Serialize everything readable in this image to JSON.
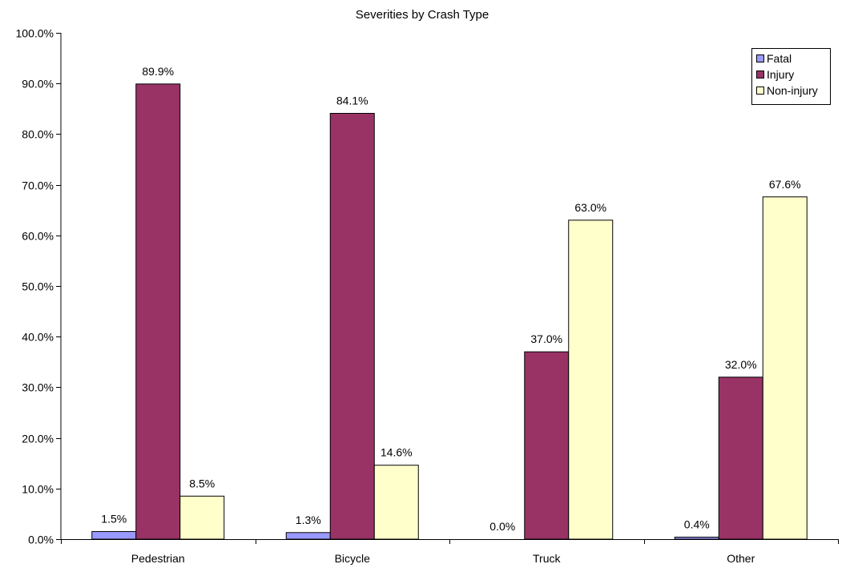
{
  "chart_data": {
    "type": "bar",
    "title": "Severities by Crash Type",
    "xlabel": "",
    "ylabel": "",
    "categories": [
      "Pedestrian",
      "Bicycle",
      "Truck",
      "Other"
    ],
    "series": [
      {
        "name": "Fatal",
        "color": "#9999ff",
        "values": [
          1.5,
          1.3,
          0.0,
          0.4
        ],
        "labels": [
          "1.5%",
          "1.3%",
          "0.0%",
          "0.4%"
        ]
      },
      {
        "name": "Injury",
        "color": "#993366",
        "values": [
          89.9,
          84.1,
          37.0,
          32.0
        ],
        "labels": [
          "89.9%",
          "84.1%",
          "37.0%",
          "32.0%"
        ]
      },
      {
        "name": "Non-injury",
        "color": "#ffffcc",
        "values": [
          8.5,
          14.6,
          63.0,
          67.6
        ],
        "labels": [
          "8.5%",
          "14.6%",
          "63.0%",
          "67.6%"
        ]
      }
    ],
    "ylim": [
      0,
      100
    ],
    "yticks": [
      0,
      10,
      20,
      30,
      40,
      50,
      60,
      70,
      80,
      90,
      100
    ],
    "ytick_labels": [
      "0.0%",
      "10.0%",
      "20.0%",
      "30.0%",
      "40.0%",
      "50.0%",
      "60.0%",
      "70.0%",
      "80.0%",
      "90.0%",
      "100.0%"
    ],
    "grid": false,
    "legend_position": "top-right"
  }
}
